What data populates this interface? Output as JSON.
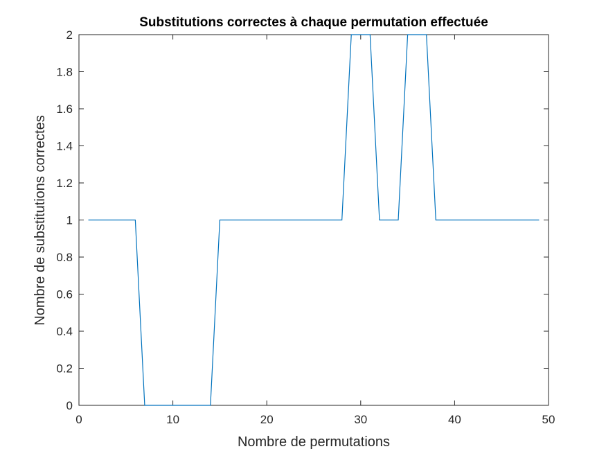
{
  "chart_data": {
    "type": "line",
    "title": "Substitutions correctes à chaque permutation effectuée",
    "xlabel": "Nombre de permutations",
    "ylabel": "Nombre de substitutions correctes",
    "xlim": [
      0,
      50
    ],
    "ylim": [
      0,
      2
    ],
    "xticks": [
      0,
      10,
      20,
      30,
      40,
      50
    ],
    "yticks": [
      0,
      0.2,
      0.4,
      0.6,
      0.8,
      1,
      1.2,
      1.4,
      1.6,
      1.8,
      2
    ],
    "xtick_labels": [
      "0",
      "10",
      "20",
      "30",
      "40",
      "50"
    ],
    "ytick_labels": [
      "0",
      "0.2",
      "0.4",
      "0.6",
      "0.8",
      "1",
      "1.2",
      "1.4",
      "1.6",
      "1.8",
      "2"
    ],
    "grid": false,
    "series": [
      {
        "color": "#0072BD",
        "x": [
          1,
          2,
          3,
          4,
          5,
          6,
          7,
          8,
          9,
          10,
          11,
          12,
          13,
          14,
          15,
          16,
          17,
          18,
          19,
          20,
          21,
          22,
          23,
          24,
          25,
          26,
          27,
          28,
          29,
          30,
          31,
          32,
          33,
          34,
          35,
          36,
          37,
          38,
          39,
          40,
          41,
          42,
          43,
          44,
          45,
          46,
          47,
          48,
          49
        ],
        "y": [
          1,
          1,
          1,
          1,
          1,
          1,
          0,
          0,
          0,
          0,
          0,
          0,
          0,
          0,
          1,
          1,
          1,
          1,
          1,
          1,
          1,
          1,
          1,
          1,
          1,
          1,
          1,
          1,
          2,
          2,
          2,
          1,
          1,
          1,
          2,
          2,
          2,
          1,
          1,
          1,
          1,
          1,
          1,
          1,
          1,
          1,
          1,
          1,
          1
        ]
      }
    ]
  }
}
